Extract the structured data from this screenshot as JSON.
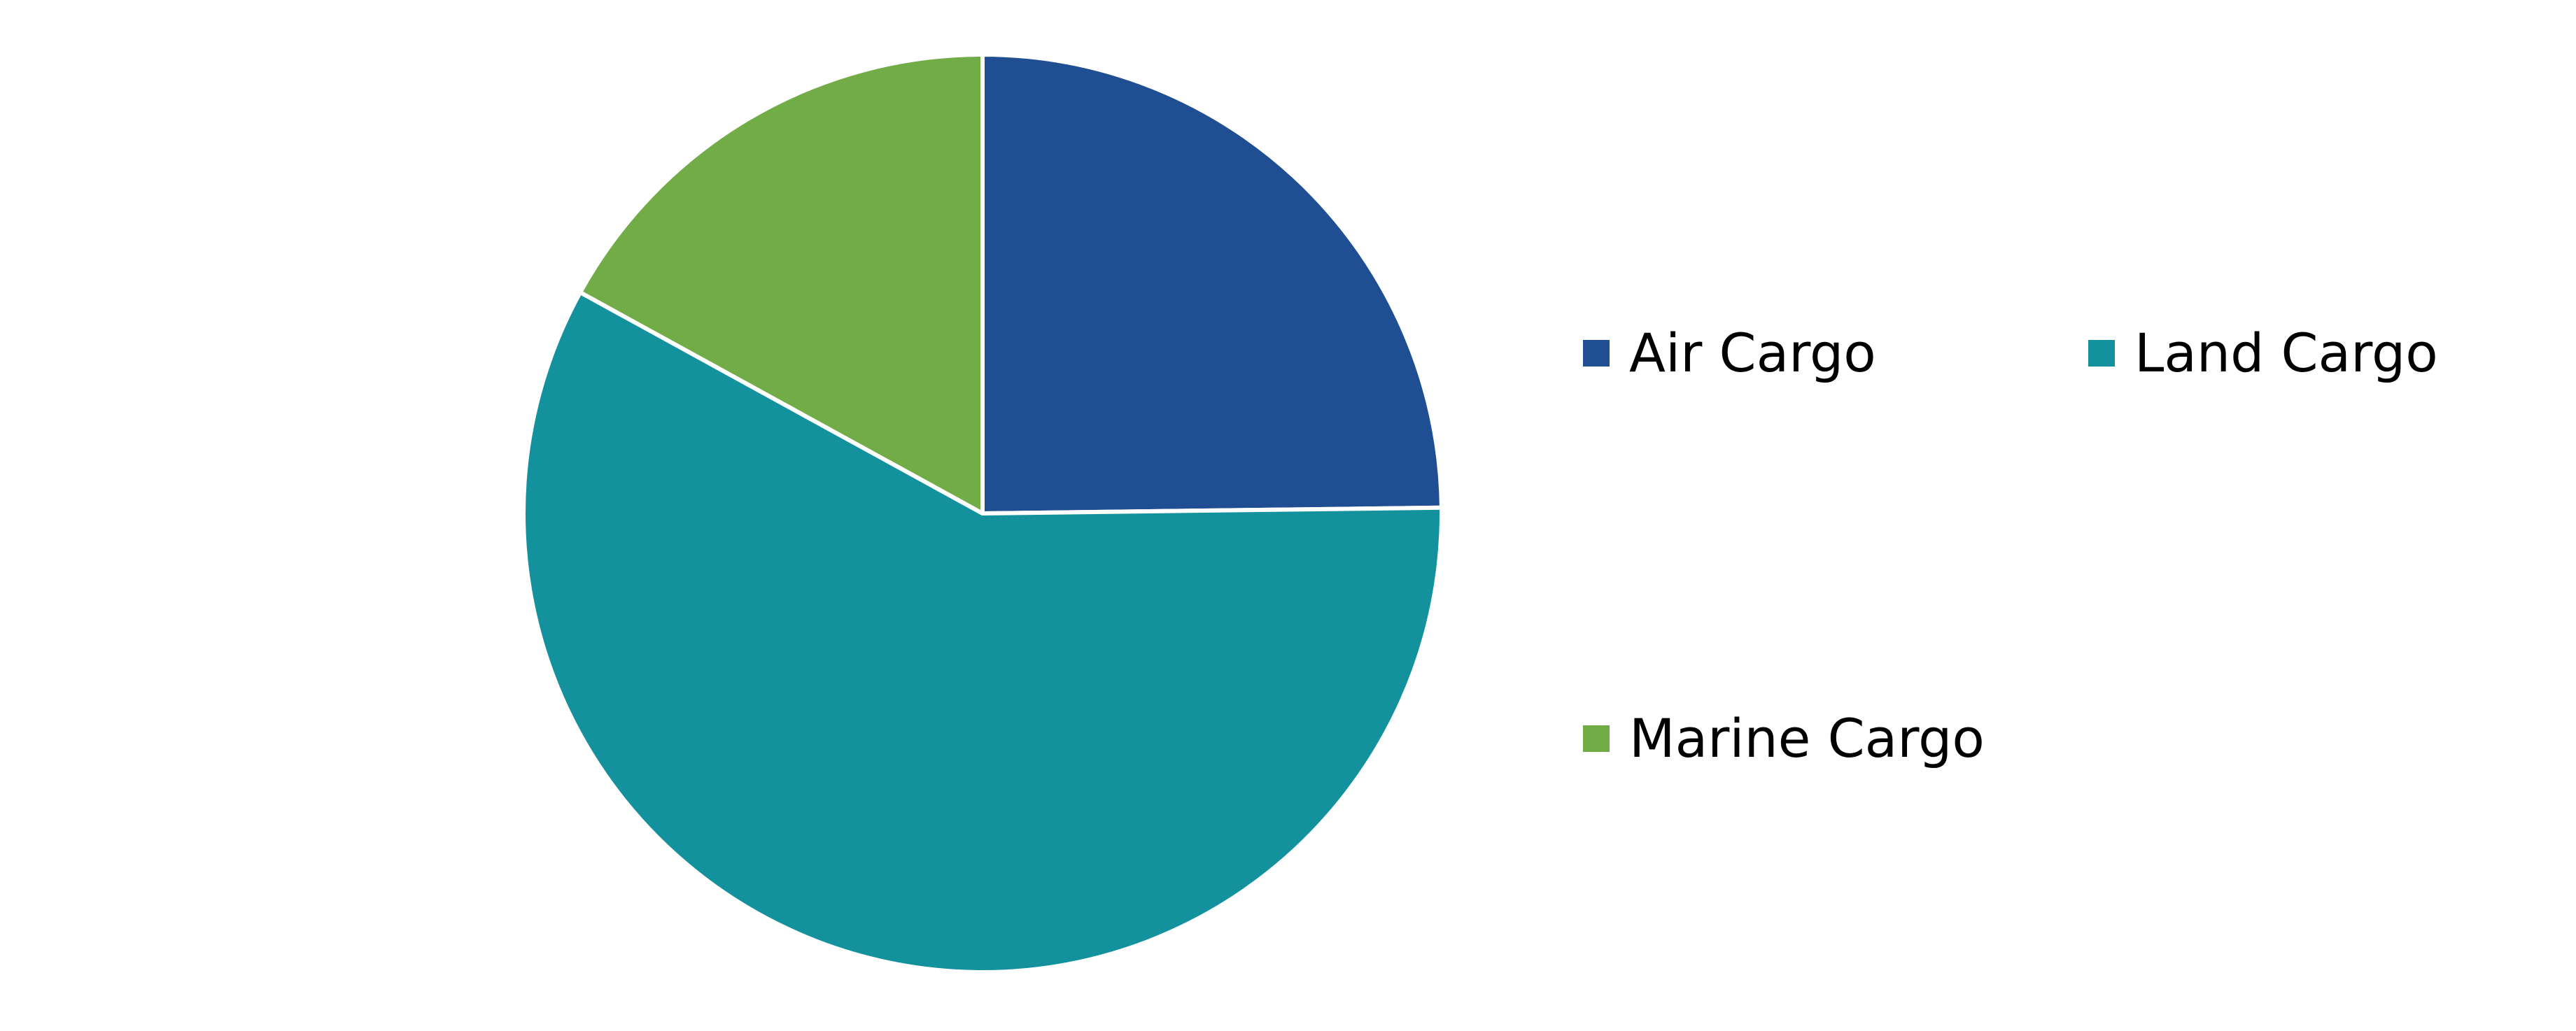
{
  "chart_data": {
    "type": "pie",
    "title": "",
    "categories": [
      "Air Cargo",
      "Land Cargo",
      "Marine Cargo"
    ],
    "values": [
      24.8,
      58.2,
      17.0
    ],
    "unit": "%",
    "colors": [
      "#1F4E92",
      "#13929E",
      "#72AC47"
    ],
    "start_angle": "12 o'clock",
    "direction": "clockwise",
    "legend_position": "right",
    "slice_border_color": "#FFFFFF"
  },
  "legend": {
    "items": [
      {
        "label": "Air Cargo",
        "color": "#1F4E92"
      },
      {
        "label": "Land Cargo",
        "color": "#13929E"
      },
      {
        "label": "Marine Cargo",
        "color": "#72AC47"
      }
    ]
  }
}
